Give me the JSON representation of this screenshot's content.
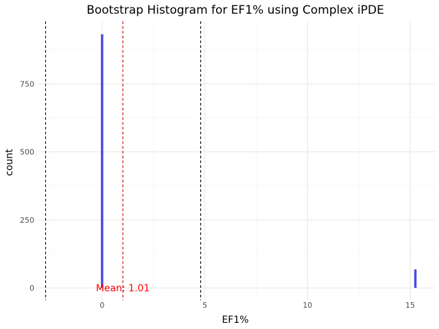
{
  "chart_data": {
    "type": "bar",
    "title": "Bootstrap Histogram for EF1% using Complex iPDE",
    "xlabel": "EF1%",
    "ylabel": "count",
    "xlim": [
      -3.1,
      16.2
    ],
    "ylim": [
      -45,
      980
    ],
    "x_ticks": [
      0,
      5,
      10,
      15
    ],
    "y_ticks": [
      0,
      250,
      500,
      750
    ],
    "grid": true,
    "bins": [
      {
        "x": 0.0,
        "count": 932
      },
      {
        "x": 15.25,
        "count": 68
      }
    ],
    "bin_width": 0.1,
    "bar_color": "#4a4ae0",
    "vlines": [
      {
        "x": -2.75,
        "color": "#000000",
        "style": "dashed"
      },
      {
        "x": 1.01,
        "color": "#cc0000",
        "style": "dashed"
      },
      {
        "x": 4.8,
        "color": "#000000",
        "style": "dashed"
      }
    ],
    "annotation": {
      "text": "Mean: 1.01",
      "x": 1.01,
      "y": 0,
      "color": "#ff0000"
    }
  }
}
